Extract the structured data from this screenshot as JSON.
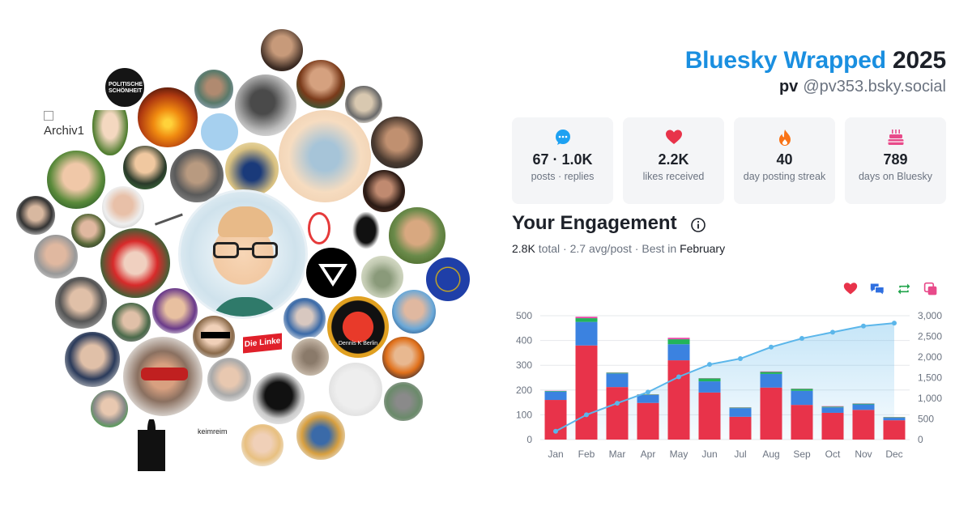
{
  "header": {
    "brand": "Bluesky Wrapped",
    "year": "2025",
    "display_name": "pv",
    "handle": "@pv353.bsky.social"
  },
  "stats": [
    {
      "value": "67 · 1.0K",
      "label": "posts · replies",
      "icon": "chat-bubble-icon",
      "color": "#1da1f2"
    },
    {
      "value": "2.2K",
      "label": "likes received",
      "icon": "heart-icon",
      "color": "#e8334a"
    },
    {
      "value": "40",
      "label": "day posting streak",
      "icon": "flame-icon",
      "color": "#f97316"
    },
    {
      "value": "789",
      "label": "days on Bluesky",
      "icon": "cake-icon",
      "color": "#e84a8a"
    }
  ],
  "engagement": {
    "title": "Your Engagement",
    "total": "2.8K",
    "total_label": "total",
    "avg": "2.7 avg/post",
    "best_prefix": "Best in",
    "best_month": "February"
  },
  "avatar_cluster": {
    "broken_image_alt": "Archiv1",
    "party_logo_text": "Die Linke",
    "text_avatar": "keimreim",
    "badge_text": "Dennis K Berlin",
    "book_text": "POLITISCHE SCHÖNHEIT"
  },
  "chart_data": {
    "type": "bar",
    "stacked": true,
    "categories": [
      "Jan",
      "Feb",
      "Mar",
      "Apr",
      "May",
      "Jun",
      "Jul",
      "Aug",
      "Sep",
      "Oct",
      "Nov",
      "Dec"
    ],
    "series": [
      {
        "color": "#e8334a",
        "values": [
          160,
          380,
          212,
          148,
          320,
          190,
          92,
          210,
          140,
          108,
          120,
          78
        ]
      },
      {
        "color": "#3b82e0",
        "values": [
          34,
          95,
          55,
          32,
          65,
          45,
          35,
          55,
          57,
          22,
          22,
          10
        ]
      },
      {
        "color": "#22b45a",
        "values": [
          2,
          15,
          3,
          2,
          20,
          12,
          2,
          8,
          8,
          3,
          3,
          2
        ]
      },
      {
        "color": "#e84aa8",
        "values": [
          1,
          6,
          1,
          1,
          6,
          1,
          1,
          2,
          1,
          2,
          1,
          1
        ]
      }
    ],
    "cumulative": {
      "color": "#5bb6ea",
      "values": [
        200,
        600,
        880,
        1150,
        1520,
        1820,
        1960,
        2240,
        2450,
        2600,
        2750,
        2820
      ]
    },
    "ylim_left": [
      0,
      500
    ],
    "ylim_right": [
      0,
      3000
    ],
    "yticks_left": [
      "0",
      "100",
      "200",
      "300",
      "400",
      "500"
    ],
    "yticks_right": [
      "0",
      "500",
      "1,000",
      "1,500",
      "2,000",
      "2,500",
      "3,000"
    ],
    "legend": [
      "heart-icon",
      "reply-icon",
      "repost-icon",
      "quote-icon"
    ],
    "grid": true
  }
}
